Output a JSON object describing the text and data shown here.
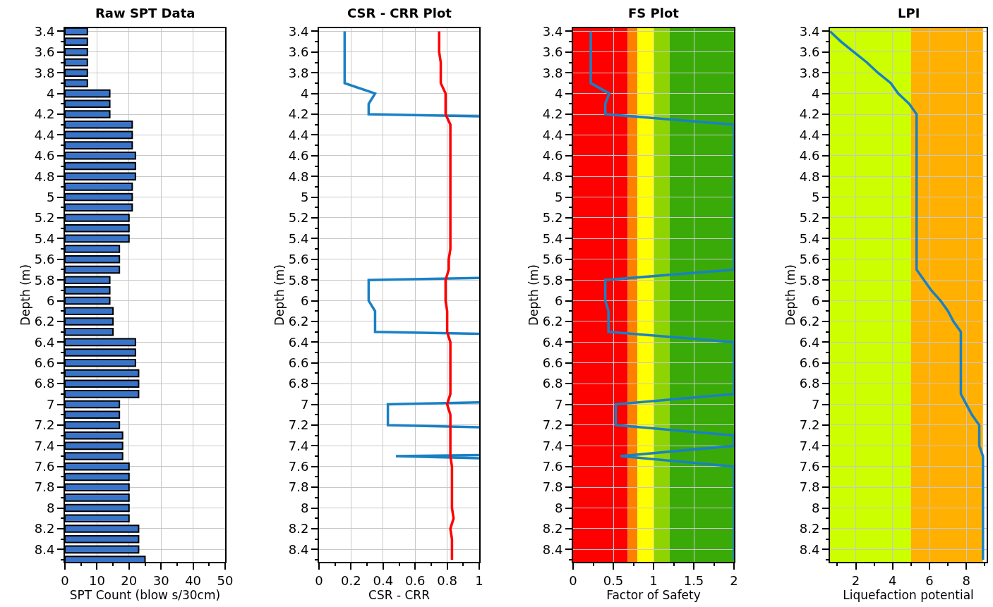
{
  "chart_data": [
    {
      "type": "bar",
      "orientation": "horizontal",
      "title": "Raw SPT Data",
      "xlabel": "SPT Count (blow s/30cm)",
      "ylabel": "Depth (m)",
      "grid": true,
      "x": [
        3.4,
        3.5,
        3.6,
        3.7,
        3.8,
        3.9,
        4.0,
        4.1,
        4.2,
        4.3,
        4.4,
        4.5,
        4.6,
        4.7,
        4.8,
        4.9,
        5.0,
        5.1,
        5.2,
        5.3,
        5.4,
        5.5,
        5.6,
        5.7,
        5.8,
        5.9,
        6.0,
        6.1,
        6.2,
        6.3,
        6.4,
        6.5,
        6.6,
        6.7,
        6.8,
        6.9,
        7.0,
        7.1,
        7.2,
        7.3,
        7.4,
        7.5,
        7.6,
        7.7,
        7.8,
        7.9,
        8.0,
        8.1,
        8.2,
        8.3,
        8.4,
        8.5
      ],
      "values": [
        7,
        7,
        7,
        7,
        7,
        7,
        14,
        14,
        14,
        21,
        21,
        21,
        22,
        22,
        22,
        21,
        21,
        21,
        20,
        20,
        20,
        17,
        17,
        17,
        14,
        14,
        14,
        15,
        15,
        15,
        22,
        22,
        22,
        23,
        23,
        23,
        17,
        17,
        17,
        18,
        18,
        18,
        20,
        20,
        20,
        20,
        20,
        20,
        23,
        23,
        23,
        25
      ],
      "color": "#3a74c8",
      "xlim": [
        0,
        50
      ],
      "xticks": [
        0,
        {
          "value": 5,
          "label": null
        },
        10,
        {
          "value": 15,
          "label": null
        },
        20,
        {
          "value": 25,
          "label": null
        },
        30,
        {
          "value": 35,
          "label": null
        },
        40,
        {
          "value": 45,
          "label": null
        },
        50
      ],
      "ylim": [
        8.52,
        3.37
      ],
      "yticks": [
        3.4,
        {
          "value": 3.5,
          "label": null
        },
        3.6,
        {
          "value": 3.7,
          "label": null
        },
        3.8,
        {
          "value": 3.9,
          "label": null
        },
        4,
        {
          "value": 4.1,
          "label": null
        },
        4.2,
        {
          "value": 4.3,
          "label": null
        },
        4.4,
        {
          "value": 4.5,
          "label": null
        },
        4.6,
        {
          "value": 4.7,
          "label": null
        },
        4.8,
        {
          "value": 4.9,
          "label": null
        },
        5,
        {
          "value": 5.1,
          "label": null
        },
        5.2,
        {
          "value": 5.3,
          "label": null
        },
        5.4,
        {
          "value": 5.5,
          "label": null
        },
        5.6,
        {
          "value": 5.7,
          "label": null
        },
        5.8,
        {
          "value": 5.9,
          "label": null
        },
        6,
        {
          "value": 6.1,
          "label": null
        },
        6.2,
        {
          "value": 6.3,
          "label": null
        },
        6.4,
        {
          "value": 6.5,
          "label": null
        },
        6.6,
        {
          "value": 6.7,
          "label": null
        },
        6.8,
        {
          "value": 6.9,
          "label": null
        },
        7,
        {
          "value": 7.1,
          "label": null
        },
        7.2,
        {
          "value": 7.3,
          "label": null
        },
        7.4,
        {
          "value": 7.5,
          "label": null
        },
        7.6,
        {
          "value": 7.7,
          "label": null
        },
        7.8,
        {
          "value": 7.9,
          "label": null
        },
        8,
        {
          "value": 8.1,
          "label": null
        },
        8.2,
        {
          "value": 8.3,
          "label": null
        },
        8.4,
        {
          "value": 8.5,
          "label": null
        }
      ]
    },
    {
      "type": "line",
      "orientation": "horizontal",
      "title": "CSR - CRR Plot",
      "xlabel": "CSR - CRR",
      "ylabel": "Depth (m)",
      "grid": true,
      "series": [
        {
          "color": "#1a80c4",
          "x": [
            3.4,
            3.9,
            4.0,
            4.1,
            4.2,
            4.22,
            5.0,
            5.78,
            5.8,
            6.0,
            6.1,
            6.3,
            6.32,
            6.6,
            6.98,
            7.0,
            7.2,
            7.22,
            7.35,
            7.49,
            7.5,
            7.52
          ],
          "values": [
            0.16,
            0.16,
            0.35,
            0.31,
            0.31,
            1,
            null,
            1,
            0.31,
            0.31,
            0.35,
            0.35,
            1,
            null,
            1,
            0.43,
            0.43,
            1,
            null,
            1,
            0.48,
            1
          ]
        },
        {
          "color": "#ff0000",
          "x": [
            3.4,
            3.5,
            3.6,
            3.7,
            3.8,
            3.9,
            4.0,
            4.1,
            4.2,
            4.3,
            4.4,
            4.5,
            4.6,
            4.7,
            4.8,
            4.9,
            5.0,
            5.1,
            5.2,
            5.3,
            5.4,
            5.5,
            5.6,
            5.7,
            5.8,
            5.9,
            6.0,
            6.1,
            6.2,
            6.3,
            6.4,
            6.5,
            6.6,
            6.7,
            6.8,
            6.9,
            7.0,
            7.1,
            7.2,
            7.3,
            7.4,
            7.5,
            7.6,
            7.7,
            7.8,
            7.9,
            8.0,
            8.1,
            8.2,
            8.3,
            8.4,
            8.5
          ],
          "values": [
            0.75,
            0.75,
            0.75,
            0.76,
            0.76,
            0.76,
            0.79,
            0.79,
            0.79,
            0.82,
            0.82,
            0.82,
            0.82,
            0.82,
            0.82,
            0.82,
            0.82,
            0.82,
            0.82,
            0.82,
            0.82,
            0.82,
            0.81,
            0.81,
            0.79,
            0.79,
            0.79,
            0.8,
            0.8,
            0.8,
            0.82,
            0.82,
            0.82,
            0.82,
            0.82,
            0.82,
            0.8,
            0.82,
            0.82,
            0.82,
            0.82,
            0.82,
            0.83,
            0.83,
            0.83,
            0.83,
            0.83,
            0.84,
            0.82,
            0.83,
            0.83,
            0.83
          ]
        }
      ],
      "xlim": [
        0,
        1
      ],
      "xticks": [
        0,
        {
          "value": 0.1,
          "label": null
        },
        0.2,
        {
          "value": 0.3,
          "label": null
        },
        0.4,
        {
          "value": 0.5,
          "label": null
        },
        0.6,
        {
          "value": 0.7,
          "label": null
        },
        0.8,
        {
          "value": 0.9,
          "label": null
        },
        1
      ],
      "ylim": [
        8.52,
        3.37
      ],
      "yticks": [
        3.4,
        {
          "value": 3.5,
          "label": null
        },
        3.6,
        {
          "value": 3.7,
          "label": null
        },
        3.8,
        {
          "value": 3.9,
          "label": null
        },
        4,
        {
          "value": 4.1,
          "label": null
        },
        4.2,
        {
          "value": 4.3,
          "label": null
        },
        4.4,
        {
          "value": 4.5,
          "label": null
        },
        4.6,
        {
          "value": 4.7,
          "label": null
        },
        4.8,
        {
          "value": 4.9,
          "label": null
        },
        5,
        {
          "value": 5.1,
          "label": null
        },
        5.2,
        {
          "value": 5.3,
          "label": null
        },
        5.4,
        {
          "value": 5.5,
          "label": null
        },
        5.6,
        {
          "value": 5.7,
          "label": null
        },
        5.8,
        {
          "value": 5.9,
          "label": null
        },
        6,
        {
          "value": 6.1,
          "label": null
        },
        6.2,
        {
          "value": 6.3,
          "label": null
        },
        6.4,
        {
          "value": 6.5,
          "label": null
        },
        6.6,
        {
          "value": 6.7,
          "label": null
        },
        6.8,
        {
          "value": 6.9,
          "label": null
        },
        7,
        {
          "value": 7.1,
          "label": null
        },
        7.2,
        {
          "value": 7.3,
          "label": null
        },
        7.4,
        {
          "value": 7.5,
          "label": null
        },
        7.6,
        {
          "value": 7.7,
          "label": null
        },
        7.8,
        {
          "value": 7.9,
          "label": null
        },
        8,
        {
          "value": 8.1,
          "label": null
        },
        8.2,
        {
          "value": 8.3,
          "label": null
        },
        8.4,
        {
          "value": 8.5,
          "label": null
        }
      ]
    },
    {
      "type": "line",
      "orientation": "horizontal",
      "title": "FS Plot",
      "xlabel": "Factor of Safety",
      "ylabel": "Depth (m)",
      "grid": true,
      "series": [
        {
          "color": "#1a80c4",
          "x": [
            3.4,
            3.9,
            4.0,
            4.1,
            4.2,
            4.3,
            5.7,
            5.8,
            6.0,
            6.1,
            6.3,
            6.4,
            6.9,
            7.0,
            7.2,
            7.3,
            7.4,
            7.5,
            7.6,
            8.5
          ],
          "values": [
            0.22,
            0.22,
            0.45,
            0.4,
            0.4,
            2,
            2,
            0.4,
            0.4,
            0.44,
            0.44,
            2,
            2,
            0.53,
            0.53,
            2,
            2,
            0.59,
            2,
            2
          ]
        }
      ],
      "bands": [
        {
          "axis": "x",
          "from": 0,
          "to": 0.68,
          "color": "#ff0000"
        },
        {
          "axis": "x",
          "from": 0.68,
          "to": 0.8,
          "color": "#ff8000"
        },
        {
          "axis": "x",
          "from": 0.8,
          "to": 1,
          "color": "#ffff00"
        },
        {
          "axis": "x",
          "from": 1,
          "to": 1.2,
          "color": "#8fd400"
        },
        {
          "axis": "x",
          "from": 1.2,
          "to": 2,
          "color": "#3aaa08"
        }
      ],
      "xlim": [
        0,
        2
      ],
      "xticks": [
        0,
        {
          "value": 0.25,
          "label": null
        },
        0.5,
        {
          "value": 0.75,
          "label": null
        },
        1,
        {
          "value": 1.25,
          "label": null
        },
        1.5,
        {
          "value": 1.75,
          "label": null
        },
        2
      ],
      "ylim": [
        8.52,
        3.37
      ],
      "yticks": [
        3.4,
        {
          "value": 3.5,
          "label": null
        },
        3.6,
        {
          "value": 3.7,
          "label": null
        },
        3.8,
        {
          "value": 3.9,
          "label": null
        },
        4,
        {
          "value": 4.1,
          "label": null
        },
        4.2,
        {
          "value": 4.3,
          "label": null
        },
        4.4,
        {
          "value": 4.5,
          "label": null
        },
        4.6,
        {
          "value": 4.7,
          "label": null
        },
        4.8,
        {
          "value": 4.9,
          "label": null
        },
        5,
        {
          "value": 5.1,
          "label": null
        },
        5.2,
        {
          "value": 5.3,
          "label": null
        },
        5.4,
        {
          "value": 5.5,
          "label": null
        },
        5.6,
        {
          "value": 5.7,
          "label": null
        },
        5.8,
        {
          "value": 5.9,
          "label": null
        },
        6,
        {
          "value": 6.1,
          "label": null
        },
        6.2,
        {
          "value": 6.3,
          "label": null
        },
        6.4,
        {
          "value": 6.5,
          "label": null
        },
        6.6,
        {
          "value": 6.7,
          "label": null
        },
        6.8,
        {
          "value": 6.9,
          "label": null
        },
        7,
        {
          "value": 7.1,
          "label": null
        },
        7.2,
        {
          "value": 7.3,
          "label": null
        },
        7.4,
        {
          "value": 7.5,
          "label": null
        },
        7.6,
        {
          "value": 7.7,
          "label": null
        },
        7.8,
        {
          "value": 7.9,
          "label": null
        },
        8,
        {
          "value": 8.1,
          "label": null
        },
        8.2,
        {
          "value": 8.3,
          "label": null
        },
        8.4,
        {
          "value": 8.5,
          "label": null
        }
      ]
    },
    {
      "type": "line",
      "orientation": "horizontal",
      "title": "LPI",
      "xlabel": "Liquefaction potential",
      "ylabel": "Depth (m)",
      "grid": true,
      "series": [
        {
          "color": "#1a80c4",
          "x": [
            3.4,
            3.5,
            3.6,
            3.7,
            3.8,
            3.9,
            4.0,
            4.1,
            4.2,
            5.7,
            5.8,
            5.9,
            6.0,
            6.1,
            6.2,
            6.3,
            6.9,
            7.0,
            7.1,
            7.2,
            7.4,
            7.5,
            8.5
          ],
          "values": [
            0.6,
            1.2,
            1.9,
            2.6,
            3.2,
            3.9,
            4.3,
            4.9,
            5.3,
            5.3,
            5.7,
            6.1,
            6.6,
            7.0,
            7.3,
            7.7,
            7.7,
            8.0,
            8.3,
            8.7,
            8.7,
            8.9,
            8.9
          ]
        }
      ],
      "bands": [
        {
          "axis": "x",
          "from": 0.6,
          "to": 5,
          "color": "#ccff00"
        },
        {
          "axis": "x",
          "from": 5,
          "to": 8.9,
          "color": "#ffb000"
        }
      ],
      "xlim": [
        0.6,
        9.1
      ],
      "xticks": [
        {
          "value": 1,
          "label": null
        },
        2,
        {
          "value": 3,
          "label": null
        },
        4,
        {
          "value": 5,
          "label": null
        },
        6,
        {
          "value": 7,
          "label": null
        },
        8,
        {
          "value": 9,
          "label": null
        }
      ],
      "ylim": [
        8.52,
        3.37
      ],
      "yticks": [
        3.4,
        {
          "value": 3.5,
          "label": null
        },
        3.6,
        {
          "value": 3.7,
          "label": null
        },
        3.8,
        {
          "value": 3.9,
          "label": null
        },
        4,
        {
          "value": 4.1,
          "label": null
        },
        4.2,
        {
          "value": 4.3,
          "label": null
        },
        4.4,
        {
          "value": 4.5,
          "label": null
        },
        4.6,
        {
          "value": 4.7,
          "label": null
        },
        4.8,
        {
          "value": 4.9,
          "label": null
        },
        5,
        {
          "value": 5.1,
          "label": null
        },
        5.2,
        {
          "value": 5.3,
          "label": null
        },
        5.4,
        {
          "value": 5.5,
          "label": null
        },
        5.6,
        {
          "value": 5.7,
          "label": null
        },
        5.8,
        {
          "value": 5.9,
          "label": null
        },
        6,
        {
          "value": 6.1,
          "label": null
        },
        6.2,
        {
          "value": 6.3,
          "label": null
        },
        6.4,
        {
          "value": 6.5,
          "label": null
        },
        6.6,
        {
          "value": 6.7,
          "label": null
        },
        6.8,
        {
          "value": 6.9,
          "label": null
        },
        7,
        {
          "value": 7.1,
          "label": null
        },
        7.2,
        {
          "value": 7.3,
          "label": null
        },
        7.4,
        {
          "value": 7.5,
          "label": null
        },
        7.6,
        {
          "value": 7.7,
          "label": null
        },
        7.8,
        {
          "value": 7.9,
          "label": null
        },
        8,
        {
          "value": 8.1,
          "label": null
        },
        8.2,
        {
          "value": 8.3,
          "label": null
        },
        8.4,
        {
          "value": 8.5,
          "label": null
        }
      ]
    }
  ]
}
